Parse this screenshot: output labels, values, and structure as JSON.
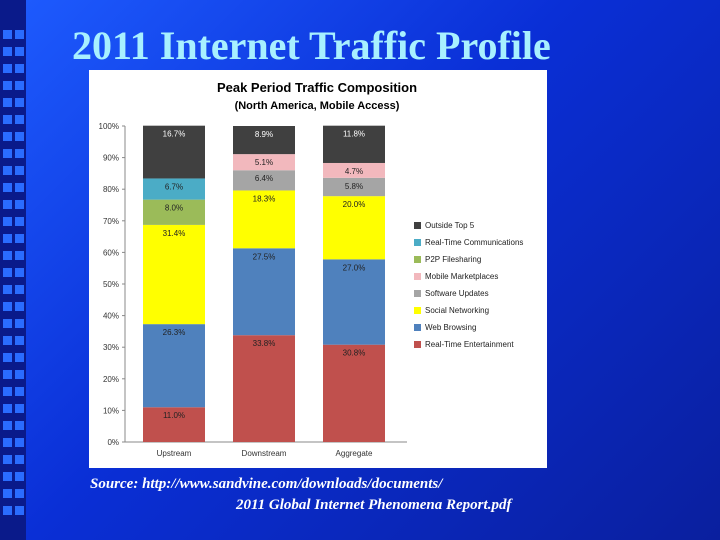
{
  "slide": {
    "title": "2011 Internet Traffic Profile",
    "source_line1": "Source: http://www.sandvine.com/downloads/documents/",
    "source_line2": "2011 Global Internet Phenomena Report.pdf"
  },
  "chart_data": {
    "type": "bar",
    "stacked": true,
    "title": "Peak Period Traffic Composition",
    "subtitle": "(North America, Mobile Access)",
    "categories": [
      "Upstream",
      "Downstream",
      "Aggregate"
    ],
    "ylim": [
      0,
      100
    ],
    "yticks": [
      "0%",
      "10%",
      "20%",
      "30%",
      "40%",
      "50%",
      "60%",
      "70%",
      "80%",
      "90%",
      "100%"
    ],
    "series": [
      {
        "name": "Real-Time Entertainment",
        "color": "#c0504d",
        "values": [
          11.0,
          33.8,
          30.8
        ],
        "labels": [
          "11.0%",
          "33.8%",
          "30.8%"
        ]
      },
      {
        "name": "Web Browsing",
        "color": "#4f81bd",
        "values": [
          26.3,
          27.5,
          27.0
        ],
        "labels": [
          "26.3%",
          "27.5%",
          "27.0%"
        ]
      },
      {
        "name": "Social Networking",
        "color": "#ffff00",
        "values": [
          31.4,
          18.3,
          20.0
        ],
        "labels": [
          "31.4%",
          "18.3%",
          "20.0%"
        ]
      },
      {
        "name": "Software Updates",
        "color": "#a5a5a5",
        "values": [
          0,
          6.4,
          5.8
        ],
        "labels": [
          "",
          "6.4%",
          "5.8%"
        ]
      },
      {
        "name": "Mobile Marketplaces",
        "color": "#f2b8bd",
        "values": [
          0,
          5.1,
          4.7
        ],
        "labels": [
          "",
          "5.1%",
          "4.7%"
        ]
      },
      {
        "name": "P2P Filesharing",
        "color": "#9bbb59",
        "values": [
          8.0,
          0,
          0
        ],
        "labels": [
          "8.0%",
          "",
          ""
        ]
      },
      {
        "name": "Real-Time Communications",
        "color": "#4bacc6",
        "values": [
          6.7,
          0,
          0
        ],
        "labels": [
          "6.7%",
          "",
          ""
        ]
      },
      {
        "name": "Outside Top 5",
        "color": "#404040",
        "values": [
          16.7,
          8.9,
          11.8
        ],
        "labels": [
          "16.7%",
          "8.9%",
          "11.8%"
        ]
      }
    ],
    "legend_position": "right",
    "grid": false
  }
}
